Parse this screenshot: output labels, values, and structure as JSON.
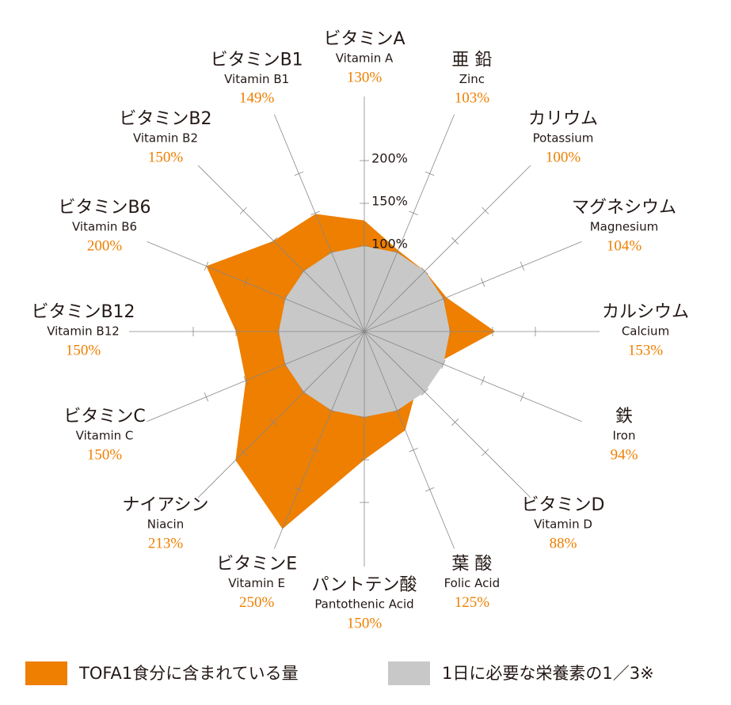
{
  "chart_data": {
    "type": "radar",
    "categories": [
      "ビタミンA",
      "亜 鉛",
      "カリウム",
      "マグネシウム",
      "カルシウム",
      "鉄",
      "ビタミンD",
      "葉 酸",
      "パントテン酸",
      "ビタミンE",
      "ナイアシン",
      "ビタミンC",
      "ビタミンB12",
      "ビタミンB6",
      "ビタミンB2",
      "ビタミンB1"
    ],
    "categories_en": [
      "Vitamin A",
      "Zinc",
      "Potassium",
      "Magnesium",
      "Calcium",
      "Iron",
      "Vitamin D",
      "Folic Acid",
      "Pantothenic Acid",
      "Vitamin E",
      "Niacin",
      "Vitamin C",
      "Vitamin B12",
      "Vitamin B6",
      "Vitamin B2",
      "Vitamin B1"
    ],
    "series": [
      {
        "name": "TOFA1食分に含まれている量",
        "color": "#ee7f00",
        "values": [
          130,
          103,
          100,
          104,
          153,
          94,
          88,
          125,
          150,
          250,
          213,
          150,
          150,
          200,
          150,
          149
        ],
        "value_labels": [
          "130%",
          "103%",
          "100%",
          "104%",
          "153%",
          "94%",
          "88%",
          "125%",
          "150%",
          "250%",
          "213%",
          "150%",
          "150%",
          "200%",
          "150%",
          "149%"
        ]
      },
      {
        "name": "1日に必要な栄養素の1／3※",
        "color": "#c8c8c8",
        "values": [
          100,
          100,
          100,
          100,
          100,
          100,
          100,
          100,
          100,
          100,
          100,
          100,
          100,
          100,
          100,
          100
        ]
      }
    ],
    "rlim": [
      0,
      275
    ],
    "rticks": [
      {
        "value": 100,
        "label": "100%"
      },
      {
        "value": 150,
        "label": "150%"
      },
      {
        "value": 200,
        "label": "200%"
      }
    ]
  }
}
